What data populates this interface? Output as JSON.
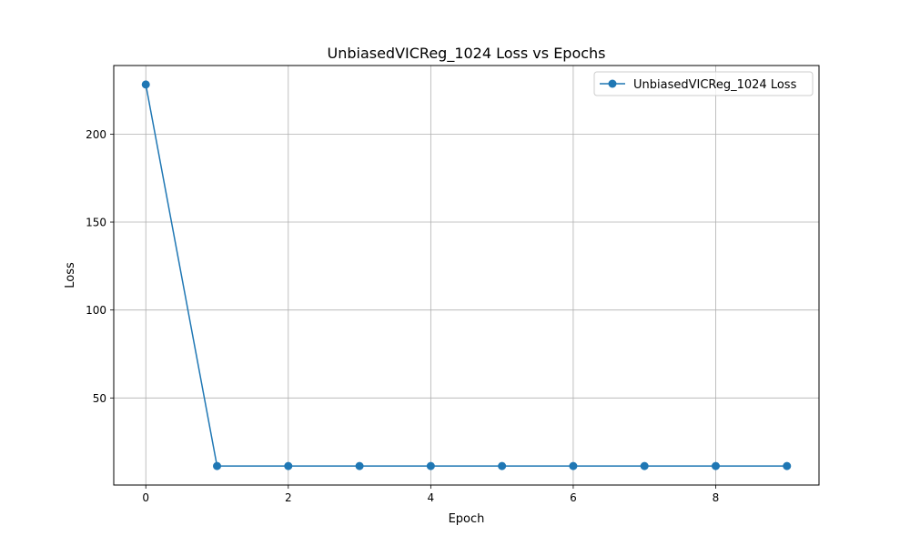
{
  "chart_data": {
    "type": "line",
    "title": "UnbiasedVICReg_1024 Loss vs Epochs",
    "xlabel": "Epoch",
    "ylabel": "Loss",
    "x": [
      0,
      1,
      2,
      3,
      4,
      5,
      6,
      7,
      8,
      9
    ],
    "series": [
      {
        "name": "UnbiasedVICReg_1024 Loss",
        "values": [
          228.2,
          11.3,
          11.3,
          11.3,
          11.3,
          11.3,
          11.3,
          11.3,
          11.3,
          11.3
        ]
      }
    ],
    "xlim": [
      -0.45,
      9.45
    ],
    "ylim": [
      0.5,
      239.0
    ],
    "xticks": [
      0,
      2,
      4,
      6,
      8
    ],
    "yticks": [
      50,
      100,
      150,
      200
    ],
    "grid": true,
    "legend_position": "upper right",
    "line_color": "#1f77b4",
    "grid_color": "#b0b0b0"
  }
}
